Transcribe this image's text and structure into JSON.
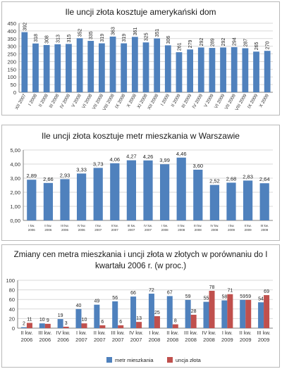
{
  "colors": {
    "blue": "#4f81bd",
    "red": "#c0504d",
    "grid": "#d9d9d9",
    "axis": "#808080"
  },
  "chart_data": [
    {
      "type": "bar",
      "title": "Ile uncji złota kosztuje amerykański dom",
      "categories": [
        "XII 2007",
        "I 2008",
        "II 2008",
        "III 2008",
        "IV 2008",
        "V 2008",
        "VI 2008",
        "VII 2008",
        "VIII 2008",
        "IX 2008",
        "X 2008",
        "XI 2008",
        "XII 2008",
        "I 2009",
        "II 2009",
        "III 2009",
        "IV 2009",
        "V 2009",
        "VI 2009",
        "VII 2009",
        "VIII 2009",
        "IX 2009",
        "X 2009"
      ],
      "values": [
        392,
        318,
        308,
        313,
        315,
        352,
        335,
        319,
        363,
        319,
        361,
        325,
        351,
        306,
        261,
        279,
        292,
        289,
        292,
        294,
        287,
        265,
        270
      ],
      "ylim": [
        0,
        450
      ],
      "yticks": [
        "0",
        "50",
        "100",
        "150",
        "200",
        "250",
        "300",
        "350",
        "400",
        "450"
      ],
      "grid": true
    },
    {
      "type": "bar",
      "title": "Ile uncji złota kosztuje metr mieszkania w Warszawie",
      "categories": [
        [
          "I kw.",
          "2006"
        ],
        [
          "II kw.",
          "2006"
        ],
        [
          "III kw.",
          "2006"
        ],
        [
          "IV kw.",
          "2006"
        ],
        [
          "I kw.",
          "2007"
        ],
        [
          "II kw.",
          "2007"
        ],
        [
          "III kw.",
          "2007"
        ],
        [
          "IV kw.",
          "2007"
        ],
        [
          "I kw.",
          "2008"
        ],
        [
          "II kw.",
          "2008"
        ],
        [
          "III kw.",
          "2008"
        ],
        [
          "IV kw.",
          "2008"
        ],
        [
          "I kw.",
          "2009"
        ],
        [
          "II kw.",
          "2009"
        ],
        [
          "III kw.",
          "2009"
        ]
      ],
      "values": [
        2.89,
        2.66,
        2.93,
        3.33,
        3.73,
        4.06,
        4.27,
        4.26,
        3.99,
        4.46,
        3.6,
        2.52,
        2.68,
        2.83,
        2.64
      ],
      "value_labels": [
        "2,89",
        "2,66",
        "2,93",
        "3,33",
        "3,73",
        "4,06",
        "4,27",
        "4,26",
        "3,99",
        "4,46",
        "3,60",
        "2,52",
        "2,68",
        "2,83",
        "2,64"
      ],
      "ylim": [
        0,
        5
      ],
      "yticks": [
        "0,00",
        "1,00",
        "2,00",
        "3,00",
        "4,00",
        "5,00"
      ],
      "grid": true
    },
    {
      "type": "bar",
      "title": "Zmiany cen metra mieszkania i uncji złota w złotych w porównaniu do I kwartału 2006 r. (w proc.)",
      "categories": [
        [
          "II kw.",
          "2006"
        ],
        [
          "III kw.",
          "2006"
        ],
        [
          "IV kw.",
          "2006"
        ],
        [
          "I kw.",
          "2007"
        ],
        [
          "II kw.",
          "2007"
        ],
        [
          "III kw.",
          "2007"
        ],
        [
          "IV kw.",
          "2007"
        ],
        [
          "I kw.",
          "2008"
        ],
        [
          "II kw.",
          "2008"
        ],
        [
          "III kw.",
          "2008"
        ],
        [
          "IV kw.",
          "2008"
        ],
        [
          "I kw.",
          "2009"
        ],
        [
          "II kw.",
          "2009"
        ],
        [
          "III kw.",
          "2009"
        ]
      ],
      "series": [
        {
          "name": "metr mieszkania",
          "values": [
            2,
            10,
            19,
            40,
            49,
            56,
            66,
            72,
            67,
            59,
            55,
            58,
            59,
            54
          ]
        },
        {
          "name": "uncja złota",
          "values": [
            11,
            9,
            3,
            10,
            6,
            6,
            13,
            25,
            8,
            28,
            78,
            71,
            59,
            69
          ]
        }
      ],
      "ylim": [
        0,
        100
      ],
      "yticks": [
        "0",
        "20",
        "40",
        "60",
        "80",
        "100"
      ],
      "legend_position": "bottom",
      "grid": true
    }
  ]
}
